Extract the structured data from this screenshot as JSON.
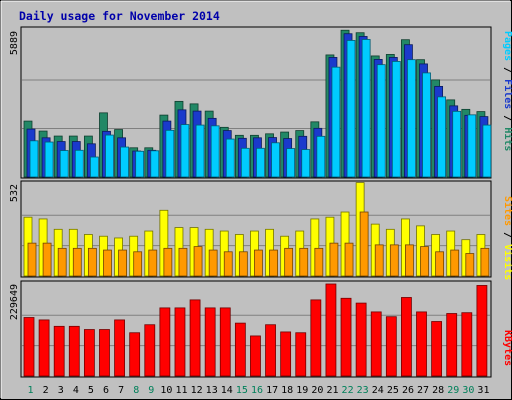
{
  "chart_data": [
    {
      "type": "bar",
      "title": "Daily usage for November 2014",
      "ylabel": "Pages / Files / Hits",
      "ymax_label": "5889",
      "ylim": [
        0,
        5889
      ],
      "categories": [
        "1",
        "2",
        "3",
        "4",
        "5",
        "6",
        "7",
        "8",
        "9",
        "10",
        "11",
        "12",
        "13",
        "14",
        "15",
        "16",
        "17",
        "18",
        "19",
        "20",
        "21",
        "22",
        "23",
        "24",
        "25",
        "26",
        "27",
        "28",
        "29",
        "30",
        "31"
      ],
      "weekend_days": [
        "1",
        "8",
        "9",
        "15",
        "16",
        "22",
        "23",
        "29",
        "30"
      ],
      "series": [
        {
          "name": "Hits",
          "color": "#228866",
          "values": [
            2240,
            1840,
            1640,
            1640,
            1640,
            2570,
            1900,
            1170,
            1170,
            2480,
            3030,
            2930,
            2640,
            1990,
            1670,
            1670,
            1730,
            1800,
            1860,
            2210,
            4890,
            5880,
            5780,
            4850,
            4910,
            5500,
            4700,
            3890,
            3090,
            2710,
            2620
          ]
        },
        {
          "name": "Files",
          "color": "#1a3acc",
          "values": [
            1920,
            1570,
            1420,
            1420,
            1330,
            1830,
            1570,
            1040,
            1070,
            2240,
            2690,
            2640,
            2350,
            1860,
            1550,
            1570,
            1580,
            1540,
            1630,
            1950,
            4790,
            5740,
            5630,
            4710,
            4790,
            5300,
            4530,
            3630,
            2850,
            2470,
            2420
          ]
        },
        {
          "name": "Pages",
          "color": "#00ccff",
          "values": [
            1450,
            1400,
            1060,
            1070,
            800,
            1680,
            1200,
            1030,
            1050,
            1870,
            2100,
            2080,
            2050,
            1520,
            1150,
            1150,
            1370,
            1140,
            1100,
            1630,
            4400,
            5470,
            5510,
            4500,
            4630,
            4700,
            4170,
            3210,
            2630,
            2490,
            2080
          ]
        }
      ]
    },
    {
      "type": "bar",
      "ylabel": "Sites / Visits",
      "ymax_label": "532",
      "ylim": [
        0,
        532
      ],
      "categories": [
        "1",
        "2",
        "3",
        "4",
        "5",
        "6",
        "7",
        "8",
        "9",
        "10",
        "11",
        "12",
        "13",
        "14",
        "15",
        "16",
        "17",
        "18",
        "19",
        "20",
        "21",
        "22",
        "23",
        "24",
        "25",
        "26",
        "27",
        "28",
        "29",
        "30",
        "31"
      ],
      "series": [
        {
          "name": "Visits",
          "color": "#ffff00",
          "values": [
            340,
            330,
            270,
            270,
            240,
            230,
            220,
            230,
            260,
            380,
            280,
            280,
            270,
            260,
            240,
            260,
            270,
            230,
            260,
            330,
            340,
            370,
            540,
            300,
            270,
            330,
            290,
            240,
            260,
            210,
            240
          ]
        },
        {
          "name": "Sites",
          "color": "#ff9900",
          "values": [
            190,
            190,
            160,
            160,
            160,
            150,
            150,
            140,
            150,
            160,
            160,
            170,
            150,
            140,
            140,
            150,
            150,
            160,
            160,
            160,
            190,
            190,
            370,
            180,
            180,
            180,
            170,
            140,
            150,
            130,
            160
          ]
        }
      ]
    },
    {
      "type": "bar",
      "ylabel": "KBytes",
      "ymax_label": "229649",
      "ylim": [
        0,
        229649
      ],
      "categories": [
        "1",
        "2",
        "3",
        "4",
        "5",
        "6",
        "7",
        "8",
        "9",
        "10",
        "11",
        "12",
        "13",
        "14",
        "15",
        "16",
        "17",
        "18",
        "19",
        "20",
        "21",
        "22",
        "23",
        "24",
        "25",
        "26",
        "27",
        "28",
        "29",
        "30",
        "31"
      ],
      "series": [
        {
          "name": "KBytes",
          "color": "#ff0000",
          "values": [
            146000,
            140000,
            124000,
            124000,
            116000,
            116000,
            140000,
            108000,
            128000,
            170000,
            170000,
            190000,
            170000,
            170000,
            132000,
            100000,
            128000,
            110000,
            108000,
            190000,
            229649,
            194000,
            182000,
            160000,
            148000,
            196000,
            160000,
            136000,
            156000,
            158000,
            226000
          ]
        }
      ]
    }
  ]
}
